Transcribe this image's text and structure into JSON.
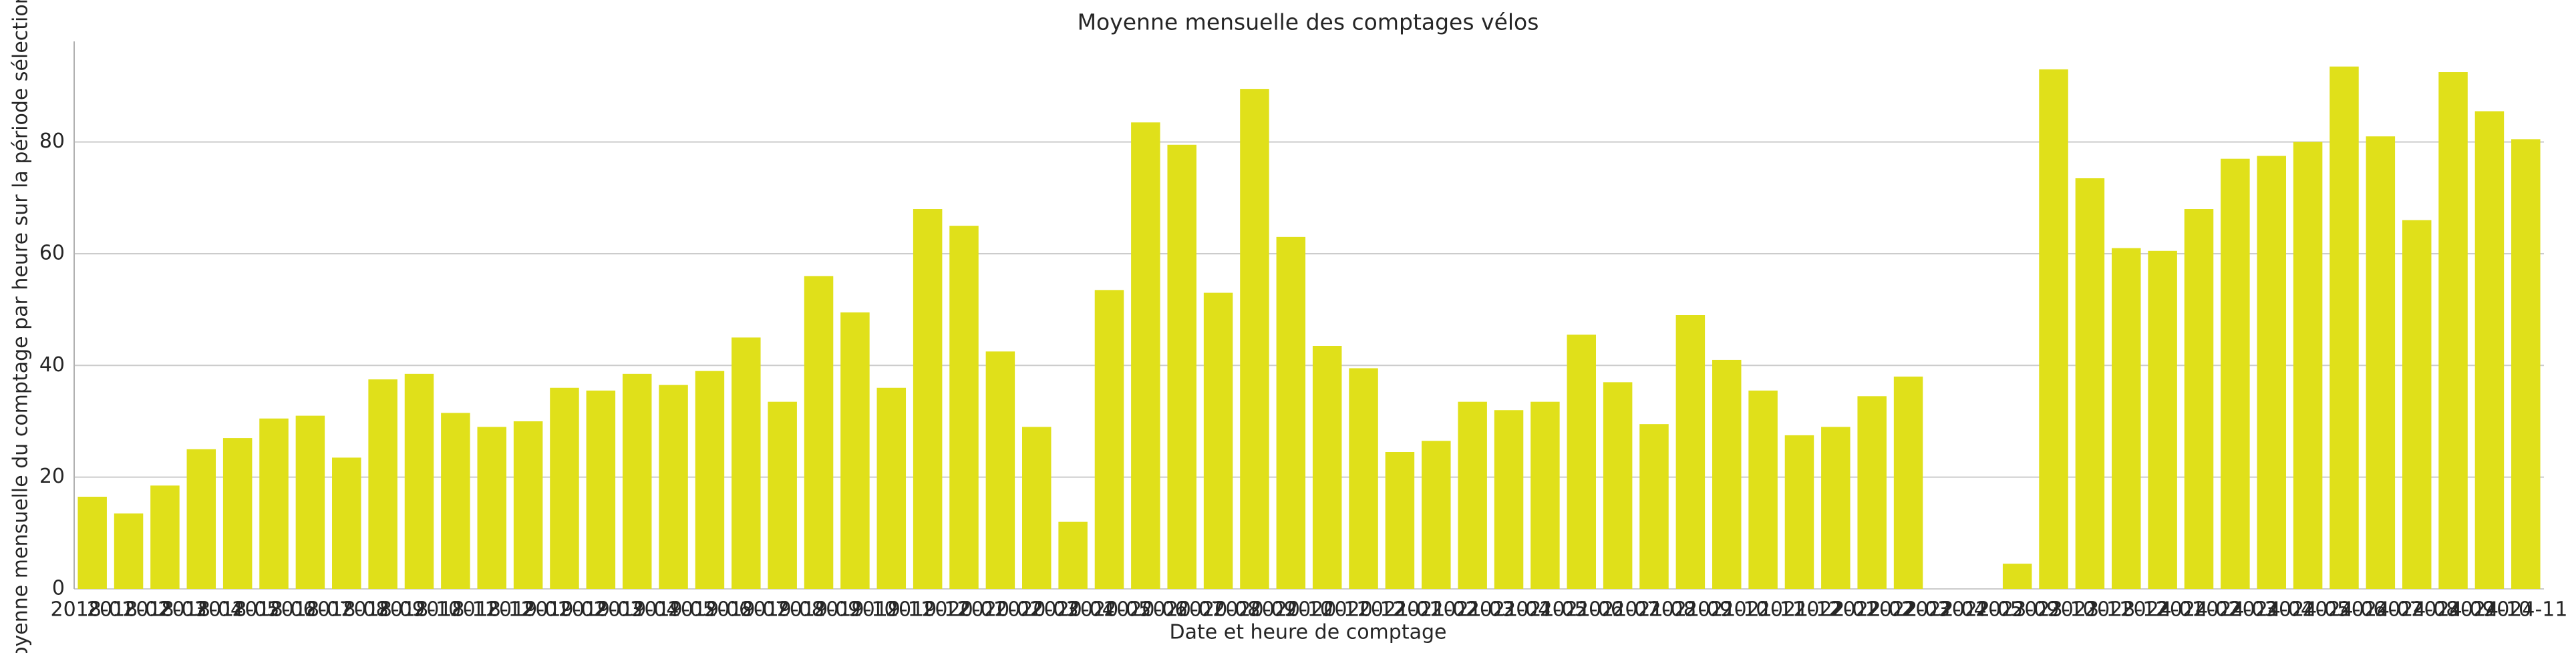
{
  "chart_data": {
    "type": "bar",
    "title": "Moyenne mensuelle des comptages vélos",
    "x_label": "Date et heure de comptage",
    "y_label": "Moyenne mensuelle du comptage par heure sur la période sélectionnée",
    "color": "#e0e01a",
    "categories": [
      "2018-01",
      "2018-02",
      "2018-03",
      "2018-04",
      "2018-05",
      "2018-06",
      "2018-07",
      "2018-08",
      "2018-09",
      "2018-10",
      "2018-11",
      "2018-12",
      "2019-01",
      "2019-02",
      "2019-03",
      "2019-04",
      "2019-05",
      "2019-06",
      "2019-07",
      "2019-08",
      "2019-09",
      "2019-10",
      "2019-11",
      "2019-12",
      "2020-01",
      "2020-02",
      "2020-03",
      "2020-04",
      "2020-05",
      "2020-06",
      "2020-07",
      "2020-08",
      "2020-09",
      "2020-10",
      "2020-11",
      "2020-12",
      "2021-01",
      "2021-02",
      "2021-03",
      "2021-04",
      "2021-05",
      "2021-06",
      "2021-07",
      "2021-08",
      "2021-09",
      "2021-10",
      "2021-11",
      "2021-12",
      "2022-01",
      "2022-02",
      "2022-03",
      "2022-04",
      "2022-05",
      "2023-09",
      "2023-10",
      "2023-11",
      "2023-12",
      "2024-01",
      "2024-02",
      "2024-03",
      "2024-04",
      "2024-05",
      "2024-06",
      "2024-07",
      "2024-08",
      "2024-09",
      "2024-10",
      "2024-11"
    ],
    "values": [
      16.5,
      13.5,
      18.5,
      25,
      27,
      30.5,
      31,
      23.5,
      37.5,
      38.5,
      31.5,
      29,
      30,
      36,
      35.5,
      38.5,
      36.5,
      39,
      45,
      33.5,
      56,
      49.5,
      36,
      68,
      65,
      42.5,
      29,
      12,
      53.5,
      83.5,
      79.5,
      53,
      89.5,
      63,
      43.5,
      39.5,
      24.5,
      26.5,
      33.5,
      32,
      33.5,
      45.5,
      37,
      29.5,
      49,
      41,
      35.5,
      27.5,
      29,
      34.5,
      38,
      null,
      null,
      4.5,
      93,
      73.5,
      61,
      60.5,
      68,
      77,
      77.5,
      80,
      93.5,
      81,
      66,
      92.5,
      85.5,
      80.5
    ],
    "ylim": [
      0,
      98
    ],
    "yticks": [
      0,
      20,
      40,
      60,
      80
    ],
    "grid": true
  }
}
